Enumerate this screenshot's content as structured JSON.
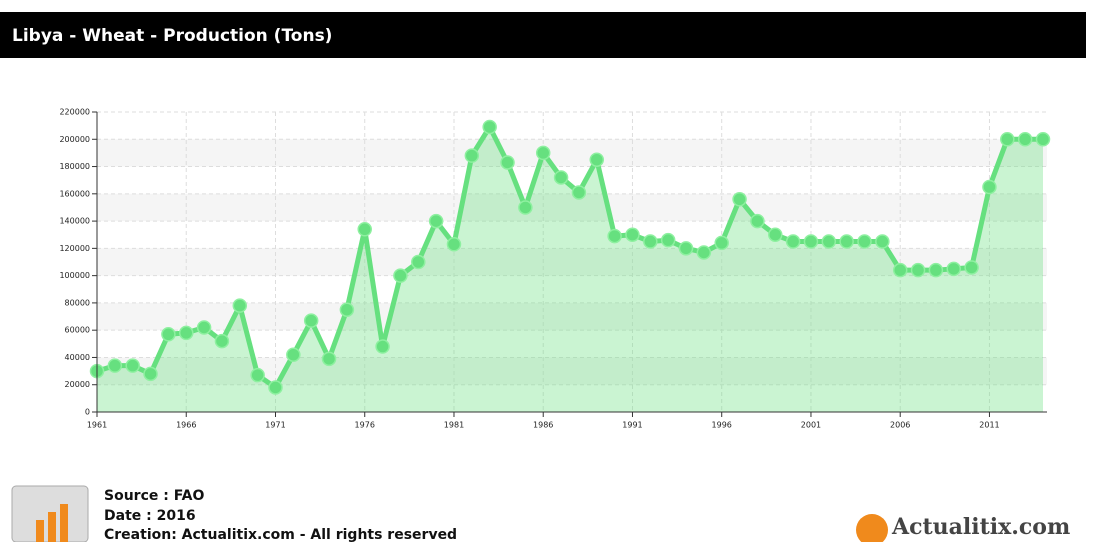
{
  "chart_data": {
    "type": "line",
    "title": "Libya - Wheat - Production (Tons)",
    "x": [
      1961,
      1962,
      1963,
      1964,
      1965,
      1966,
      1967,
      1968,
      1969,
      1970,
      1971,
      1972,
      1973,
      1974,
      1975,
      1976,
      1977,
      1978,
      1979,
      1980,
      1981,
      1982,
      1983,
      1984,
      1985,
      1986,
      1987,
      1988,
      1989,
      1990,
      1991,
      1992,
      1993,
      1994,
      1995,
      1996,
      1997,
      1998,
      1999,
      2000,
      2001,
      2002,
      2003,
      2004,
      2005,
      2006,
      2007,
      2008,
      2009,
      2010,
      2011,
      2012,
      2013,
      2014
    ],
    "series": [
      {
        "color": "#66e07f",
        "values": [
          30000,
          34000,
          34000,
          28000,
          57000,
          58000,
          62000,
          52000,
          78000,
          27000,
          18000,
          42000,
          67000,
          39000,
          75000,
          134000,
          48000,
          100000,
          110000,
          140000,
          123000,
          188000,
          209000,
          183000,
          150000,
          190000,
          172000,
          161000,
          185000,
          129000,
          130000,
          125000,
          126000,
          120000,
          117000,
          124000,
          156000,
          140000,
          130000,
          125000,
          125000,
          125000,
          125000,
          125000,
          125000,
          104000,
          104000,
          104000,
          105000,
          106000,
          165000,
          200000,
          200000,
          200000
        ]
      }
    ],
    "xlim": [
      1961,
      2014
    ],
    "xticks": [
      1961,
      1966,
      1971,
      1976,
      1981,
      1986,
      1991,
      1996,
      2001,
      2006,
      2011
    ],
    "ylim": [
      0,
      220000
    ],
    "yticks": [
      0,
      20000,
      40000,
      60000,
      80000,
      100000,
      120000,
      140000,
      160000,
      180000,
      200000,
      220000
    ],
    "grid": true
  },
  "footer": {
    "source": "Source : FAO",
    "date": "Date : 2016",
    "creation": "Creation: Actualitix.com - All rights reserved"
  },
  "logo": "Actualitix.com"
}
